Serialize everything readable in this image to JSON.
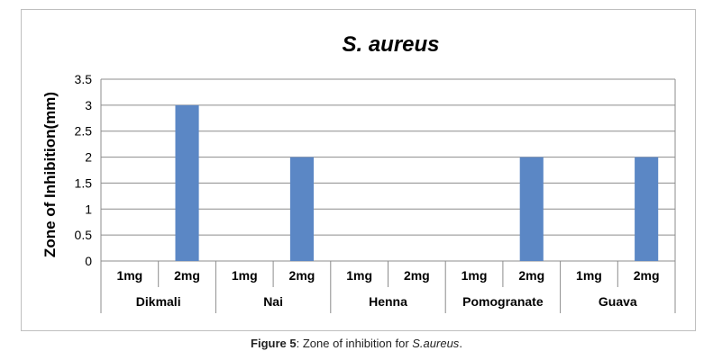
{
  "chart_data": {
    "type": "bar",
    "title": "S. aureus",
    "ylabel": "Zone of Inhibition(mm)",
    "xlabel": "",
    "ylim": [
      0,
      3.5
    ],
    "yticks": [
      "0",
      "0.5",
      "1",
      "1.5",
      "2",
      "2.5",
      "3",
      "3.5"
    ],
    "grid": true,
    "legend": "none",
    "groups": [
      "Dikmali",
      "Nai",
      "Henna",
      "Pomogranate",
      "Guava"
    ],
    "categories": [
      "1mg",
      "2mg",
      "1mg",
      "2mg",
      "1mg",
      "2mg",
      "1mg",
      "2mg",
      "1mg",
      "2mg"
    ],
    "values": [
      0,
      3,
      0,
      2,
      0,
      0,
      0,
      2,
      0,
      2
    ],
    "bar_color": "#5b87c5"
  },
  "caption": {
    "label": "Figure 5",
    "text": ": Zone of inhibition for ",
    "species": "S.aureus",
    "end": "."
  }
}
